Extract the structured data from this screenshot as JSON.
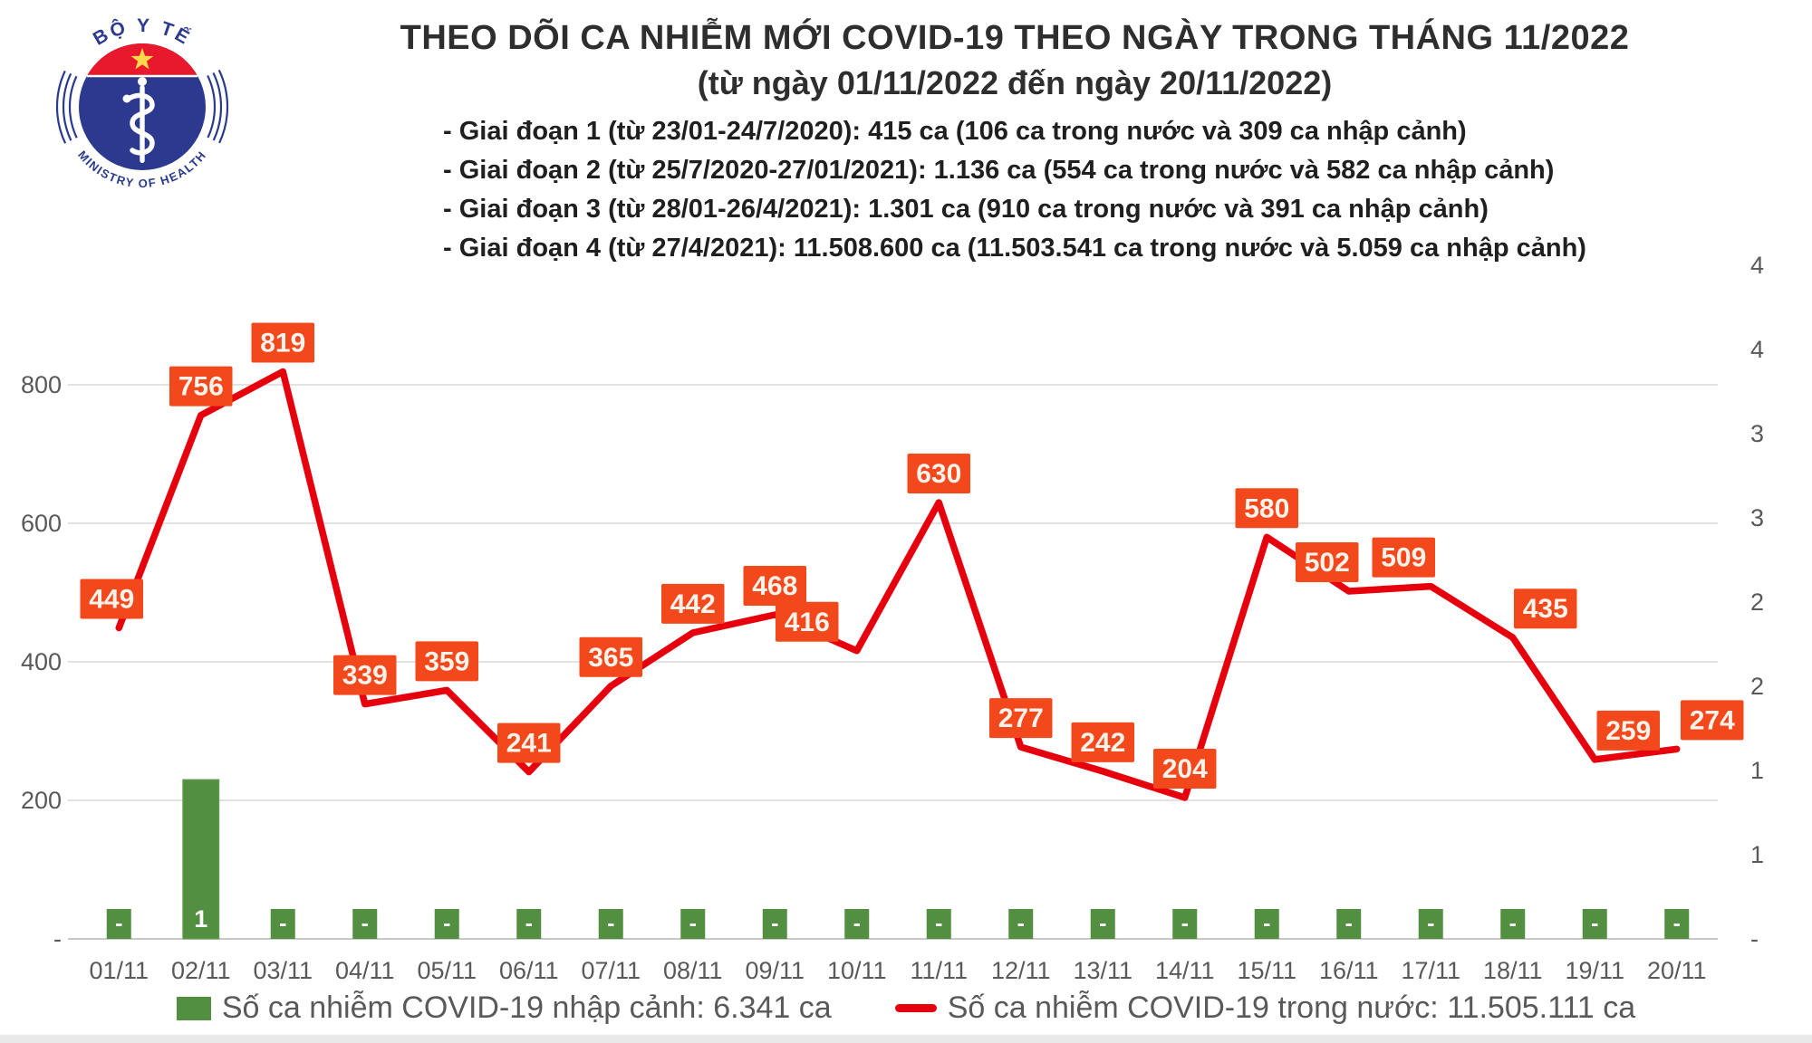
{
  "logo": {
    "text_top": "BỘ Y TẾ",
    "text_bottom": "MINISTRY OF HEALTH"
  },
  "header": {
    "title": "THEO DÕI CA NHIỄM MỚI COVID-19 THEO NGÀY TRONG THÁNG 11/2022",
    "subtitle": "(từ ngày 01/11/2022 đến ngày 20/11/2022)",
    "notes": [
      "- Giai đoạn 1 (từ 23/01-24/7/2020): 415 ca (106 ca trong nước và 309 ca nhập cảnh)",
      "- Giai đoạn 2 (từ 25/7/2020-27/01/2021): 1.136 ca (554 ca trong nước và 582 ca nhập cảnh)",
      "- Giai đoạn 3 (từ 28/01-26/4/2021): 1.301 ca (910 ca trong nước và 391 ca nhập cảnh)",
      "- Giai đoạn 4 (từ 27/4/2021): 11.508.600 ca (11.503.541 ca trong nước và 5.059 ca nhập cảnh)"
    ]
  },
  "chart_data": {
    "type": "line+bar",
    "title": "THEO DÕI CA NHIỄM MỚI COVID-19 THEO NGÀY TRONG THÁNG 11/2022",
    "categories": [
      "01/11",
      "02/11",
      "03/11",
      "04/11",
      "05/11",
      "06/11",
      "07/11",
      "08/11",
      "09/11",
      "10/11",
      "11/11",
      "12/11",
      "13/11",
      "14/11",
      "15/11",
      "16/11",
      "17/11",
      "18/11",
      "19/11",
      "20/11"
    ],
    "series": [
      {
        "name": "Số ca nhiễm COVID-19 nhập cảnh",
        "type": "bar",
        "axis": "secondary",
        "color": "#538f41",
        "values": [
          0,
          1,
          0,
          0,
          0,
          0,
          0,
          0,
          0,
          0,
          0,
          0,
          0,
          0,
          0,
          0,
          0,
          0,
          0,
          0
        ],
        "labels": [
          "-",
          "1",
          "-",
          "-",
          "-",
          "-",
          "-",
          "-",
          "-",
          "-",
          "-",
          "-",
          "-",
          "-",
          "-",
          "-",
          "-",
          "-",
          "-",
          "-"
        ]
      },
      {
        "name": "Số ca nhiễm COVID-19 trong nước",
        "type": "line",
        "axis": "primary",
        "color": "#e6000e",
        "values": [
          449,
          756,
          819,
          339,
          359,
          241,
          365,
          442,
          468,
          416,
          630,
          277,
          242,
          204,
          580,
          502,
          509,
          435,
          259,
          274
        ]
      }
    ],
    "primary_axis": {
      "ticks": [
        {
          "value": 0,
          "label": "-"
        },
        {
          "value": 200,
          "label": "200"
        },
        {
          "value": 400,
          "label": "400"
        },
        {
          "value": 600,
          "label": "600"
        },
        {
          "value": 800,
          "label": "800"
        }
      ],
      "range": [
        0,
        1000
      ]
    },
    "secondary_axis": {
      "tick_labels": [
        "-",
        "1",
        "1",
        "2",
        "2",
        "3",
        "3",
        "4",
        "4"
      ],
      "tick_values": [
        0,
        0.5,
        1,
        1.5,
        2,
        2.5,
        3,
        3.5,
        4
      ],
      "range": [
        0,
        4.5
      ]
    },
    "grid": "horizontal",
    "legend_position": "bottom",
    "label_box_color": "#f2481c",
    "label_text_color": "#fdf3ea"
  },
  "legend": {
    "items": [
      {
        "label": "Số ca nhiễm COVID-19 nhập cảnh: 6.341 ca",
        "color": "#538f41",
        "marker": "square"
      },
      {
        "label": "Số ca nhiễm COVID-19 trong nước: 11.505.111 ca",
        "color": "#e6000e",
        "marker": "dash"
      }
    ]
  },
  "colors": {
    "line_red": "#e6000e",
    "label_orange": "#f2481c",
    "bar_green": "#538f41",
    "axis_gray": "#595959",
    "grid_gray": "#d9d9d9",
    "navy": "#2b3a8f",
    "flag_red": "#e8192c",
    "star_yellow": "#ffd84d"
  }
}
